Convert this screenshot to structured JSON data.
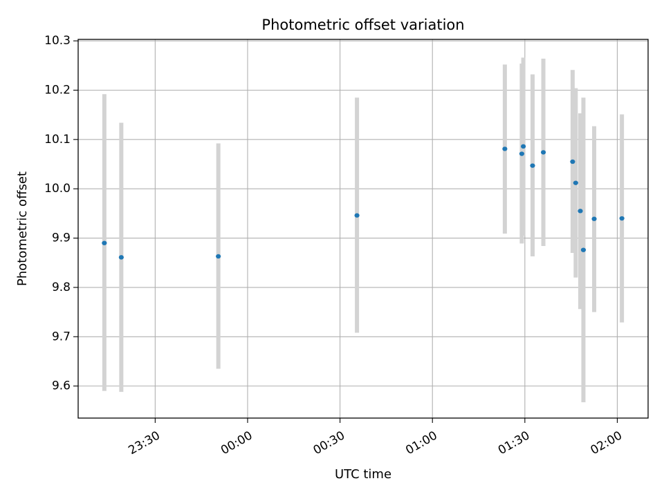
{
  "chart_data": {
    "type": "scatter",
    "title": "Photometric offset variation",
    "xlabel": "UTC time",
    "ylabel": "Photometric offset",
    "x_axis_type": "time",
    "xlim": [
      "23:05",
      "02:10"
    ],
    "ylim": [
      9.535,
      10.303
    ],
    "xticks": [
      "23:30",
      "00:00",
      "00:30",
      "01:00",
      "01:30",
      "02:00"
    ],
    "yticks": [
      "9.6",
      "9.7",
      "9.8",
      "9.9",
      "10.0",
      "10.1",
      "10.2",
      "10.3"
    ],
    "grid": true,
    "legend": "none",
    "marker_color": "#1f77b4",
    "errorbar_color": "#d3d3d3",
    "points": [
      {
        "t": "23:13.5",
        "y": 9.89,
        "lo": 9.59,
        "hi": 10.192
      },
      {
        "t": "23:19.0",
        "y": 9.861,
        "lo": 9.588,
        "hi": 10.134
      },
      {
        "t": "23:50.5",
        "y": 9.863,
        "lo": 9.635,
        "hi": 10.092
      },
      {
        "t": "00:35.5",
        "y": 9.946,
        "lo": 9.708,
        "hi": 10.185
      },
      {
        "t": "01:23.5",
        "y": 10.081,
        "lo": 9.909,
        "hi": 10.252
      },
      {
        "t": "01:29.0",
        "y": 10.071,
        "lo": 9.889,
        "hi": 10.254
      },
      {
        "t": "01:29.5",
        "y": 10.086,
        "lo": 9.905,
        "hi": 10.266
      },
      {
        "t": "01:32.5",
        "y": 10.047,
        "lo": 9.863,
        "hi": 10.232
      },
      {
        "t": "01:36.0",
        "y": 10.074,
        "lo": 9.884,
        "hi": 10.264
      },
      {
        "t": "01:45.5",
        "y": 10.055,
        "lo": 9.87,
        "hi": 10.241
      },
      {
        "t": "01:46.5",
        "y": 10.012,
        "lo": 9.82,
        "hi": 10.204
      },
      {
        "t": "01:48.0",
        "y": 9.955,
        "lo": 9.756,
        "hi": 10.153
      },
      {
        "t": "01:49.0",
        "y": 9.876,
        "lo": 9.567,
        "hi": 10.185
      },
      {
        "t": "01:52.5",
        "y": 9.939,
        "lo": 9.75,
        "hi": 10.127
      },
      {
        "t": "02:01.5",
        "y": 9.94,
        "lo": 9.729,
        "hi": 10.151
      }
    ]
  }
}
